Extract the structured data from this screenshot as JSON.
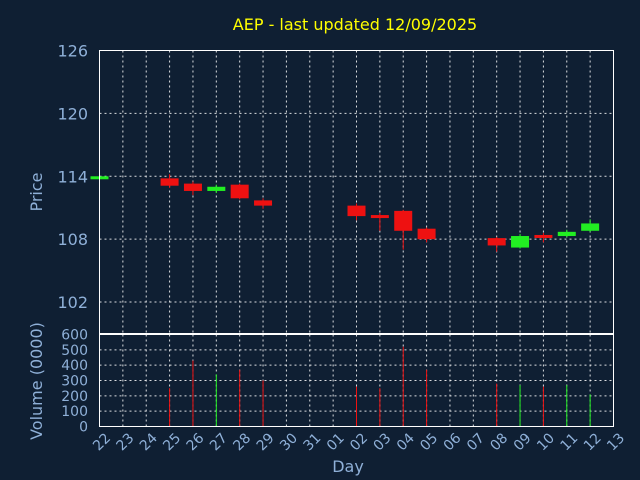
{
  "chart_data": {
    "type": "candlestick",
    "title": "AEP - last updated 12/09/2025",
    "xlabel": "Day",
    "price_panel": {
      "ylabel": "Price",
      "ylim": [
        99,
        126
      ],
      "yticks": [
        "126",
        "120",
        "114",
        "108",
        "102"
      ],
      "grid": true
    },
    "volume_panel": {
      "ylabel": "Volume (0000)",
      "ylim": [
        0,
        600
      ],
      "yticks": [
        "600",
        "500",
        "400",
        "300",
        "200",
        "100",
        "0"
      ],
      "grid": true
    },
    "x_tick_labels": [
      "22",
      "23",
      "24",
      "25",
      "26",
      "27",
      "28",
      "29",
      "30",
      "31",
      "01",
      "02",
      "03",
      "04",
      "05",
      "06",
      "07",
      "08",
      "09",
      "10",
      "11",
      "12",
      "13"
    ],
    "candles": [
      {
        "day": "22",
        "open": 113.8,
        "close": 114.0,
        "high": 114.1,
        "low": 113.7,
        "volume": 0
      },
      {
        "day": "25",
        "open": 113.8,
        "close": 113.1,
        "high": 114.2,
        "low": 112.9,
        "volume": 250
      },
      {
        "day": "26",
        "open": 113.3,
        "close": 112.6,
        "high": 113.5,
        "low": 112.2,
        "volume": 430
      },
      {
        "day": "27",
        "open": 112.6,
        "close": 113.0,
        "high": 113.2,
        "low": 112.4,
        "volume": 340
      },
      {
        "day": "28",
        "open": 113.2,
        "close": 111.9,
        "high": 113.3,
        "low": 111.8,
        "volume": 370
      },
      {
        "day": "29",
        "open": 111.7,
        "close": 111.2,
        "high": 111.9,
        "low": 110.9,
        "volume": 300
      },
      {
        "day": "02",
        "open": 111.2,
        "close": 110.2,
        "high": 111.4,
        "low": 109.8,
        "volume": 260
      },
      {
        "day": "03",
        "open": 110.3,
        "close": 110.1,
        "high": 110.5,
        "low": 108.8,
        "volume": 250
      },
      {
        "day": "04",
        "open": 110.7,
        "close": 108.8,
        "high": 110.8,
        "low": 107.0,
        "volume": 520
      },
      {
        "day": "05",
        "open": 109.0,
        "close": 108.0,
        "high": 109.1,
        "low": 107.7,
        "volume": 370
      },
      {
        "day": "08",
        "open": 108.1,
        "close": 107.4,
        "high": 108.2,
        "low": 106.8,
        "volume": 280
      },
      {
        "day": "09",
        "open": 107.2,
        "close": 108.3,
        "high": 108.5,
        "low": 107.1,
        "volume": 270
      },
      {
        "day": "10",
        "open": 108.4,
        "close": 108.3,
        "high": 108.6,
        "low": 107.7,
        "volume": 260
      },
      {
        "day": "11",
        "open": 108.3,
        "close": 108.7,
        "high": 108.9,
        "low": 108.2,
        "volume": 270
      },
      {
        "day": "12",
        "open": 108.8,
        "close": 109.5,
        "high": 109.9,
        "low": 108.7,
        "volume": 210
      }
    ],
    "colors": {
      "up": "#22ee22",
      "down": "#ee1111",
      "title": "#ffff00",
      "axis_text": "#8fb0d8",
      "background": "#0f1f33",
      "grid": "#ffffff"
    }
  }
}
